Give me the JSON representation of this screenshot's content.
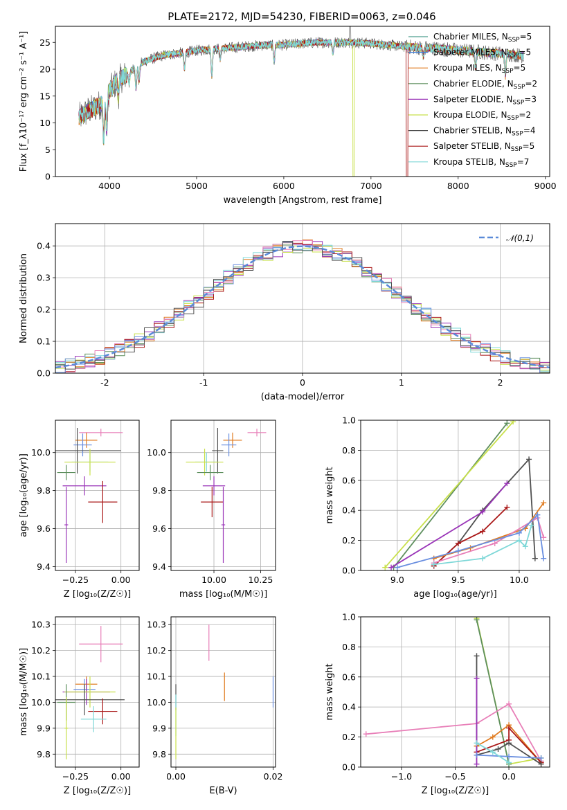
{
  "figure": {
    "title": "PLATE=2172, MJD=54230, FIBERID=0063, z=0.046"
  },
  "chart_data": [
    {
      "id": "spec",
      "type": "line",
      "xlabel": "wavelength [Angstrom, rest frame]",
      "ylabel": "Flux [f_λ10⁻¹⁷ erg cm⁻² s⁻¹ A⁻¹]",
      "xlim": [
        3380,
        9050
      ],
      "ylim": [
        0,
        28
      ],
      "xticks": [
        4000,
        5000,
        6000,
        7000,
        8000,
        9000
      ],
      "yticks": [
        0,
        5,
        10,
        15,
        20,
        25
      ],
      "grid": false,
      "legend_position": "right",
      "data_x_range": [
        3650,
        8750
      ],
      "continuum": {
        "x": [
          3650,
          3700,
          3750,
          3800,
          3850,
          3900,
          3950,
          4000,
          4100,
          4200,
          4300,
          4400,
          4500,
          4600,
          4700,
          4800,
          4900,
          5000,
          5200,
          5400,
          5600,
          5800,
          6000,
          6200,
          6400,
          6600,
          6800,
          7000,
          7200,
          7400,
          7600,
          7800,
          8000,
          8200,
          8400,
          8600,
          8750
        ],
        "y": [
          11,
          11.5,
          12.2,
          12.5,
          13,
          13.5,
          14,
          16,
          18,
          19,
          20.5,
          21.5,
          22,
          22.5,
          22.8,
          23,
          23.2,
          23.5,
          23.8,
          24,
          24.3,
          24.5,
          24.5,
          24.8,
          25,
          25,
          25,
          24.8,
          24.5,
          24.2,
          24,
          23.8,
          23.5,
          23.3,
          23,
          22.8,
          22.5
        ]
      },
      "series": [
        {
          "name": "Chabrier MILES, N_SSP=5",
          "color": "#4f9f8f"
        },
        {
          "name": "Salpeter MILES, N_SSP=5",
          "color": "#3f7fd8"
        },
        {
          "name": "Kroupa MILES, N_SSP=5",
          "color": "#e07b20"
        },
        {
          "name": "Chabrier ELODIE, N_SSP=2",
          "color": "#5e8f5e"
        },
        {
          "name": "Salpeter ELODIE, N_SSP=3",
          "color": "#9a35b8"
        },
        {
          "name": "Kroupa ELODIE, N_SSP=2",
          "color": "#c8e04a"
        },
        {
          "name": "Chabrier STELIB, N_SSP=4",
          "color": "#505050"
        },
        {
          "name": "Salpeter STELIB, N_SSP=5",
          "color": "#aa1818"
        },
        {
          "name": "Kroupa STELIB, N_SSP=7",
          "color": "#7fd8d8"
        }
      ]
    },
    {
      "id": "hist",
      "type": "line",
      "xlabel": "(data-model)/error",
      "ylabel": "Normed distribution",
      "xlim": [
        -2.5,
        2.5
      ],
      "ylim": [
        0,
        0.47
      ],
      "xticks": [
        -2,
        -1,
        0,
        1,
        2
      ],
      "yticks": [
        0.0,
        0.1,
        0.2,
        0.3,
        0.4
      ],
      "grid": true,
      "legend_position": "upper right",
      "legend": "𝒩(0,1)",
      "gauss_color": "#5a8ad8",
      "bin_edges": [
        -2.5,
        -2.4,
        -2.3,
        -2.2,
        -2.1,
        -2.0,
        -1.9,
        -1.8,
        -1.7,
        -1.6,
        -1.5,
        -1.4,
        -1.3,
        -1.2,
        -1.1,
        -1.0,
        -0.9,
        -0.8,
        -0.7,
        -0.6,
        -0.5,
        -0.4,
        -0.3,
        -0.2,
        -0.1,
        0.0,
        0.1,
        0.2,
        0.3,
        0.4,
        0.5,
        0.6,
        0.7,
        0.8,
        0.9,
        1.0,
        1.1,
        1.2,
        1.3,
        1.4,
        1.5,
        1.6,
        1.7,
        1.8,
        1.9,
        2.0,
        2.1,
        2.2,
        2.3,
        2.4,
        2.5
      ],
      "hist_colors": [
        "#5e8f5e",
        "#e07b20",
        "#9a35b8",
        "#c8e04a",
        "#aa1818",
        "#7fd8d8",
        "#e87fb8",
        "#6a8fe0",
        "#505050"
      ]
    },
    {
      "id": "za",
      "type": "scatter",
      "xlabel": "Z [log₁₀(Z/Z☉)]",
      "ylabel": "age  [log₁₀(age/yr)]",
      "xlim": [
        -0.36,
        0.1
      ],
      "ylim": [
        9.38,
        10.17
      ],
      "xticks": [
        -0.25,
        0.0
      ],
      "xticklabels": [
        "−0.25",
        "0.00"
      ],
      "yticks": [
        9.4,
        9.6,
        9.8,
        10.0
      ],
      "grid": true,
      "points": [
        {
          "x": -0.11,
          "y": 10.105,
          "ex": 0.12,
          "ey": 0.02,
          "c": "#e87fb8"
        },
        {
          "x": -0.19,
          "y": 10.065,
          "ex": 0.06,
          "ey": 0.04,
          "c": "#e07b20"
        },
        {
          "x": -0.21,
          "y": 10.04,
          "ex": 0.05,
          "ey": 0.06,
          "c": "#6a8fe0"
        },
        {
          "x": -0.24,
          "y": 10.01,
          "ex": 0.24,
          "ey": 0.12,
          "c": "#505050"
        },
        {
          "x": -0.17,
          "y": 9.95,
          "ex": 0.1,
          "ey": 0.05,
          "c": "#7fd8d8"
        },
        {
          "x": -0.17,
          "y": 9.95,
          "ex": 0.14,
          "ey": 0.07,
          "c": "#c8e04a"
        },
        {
          "x": -0.3,
          "y": 9.895,
          "ex": 0.05,
          "ey": 0.04,
          "c": "#5e8f5e"
        },
        {
          "x": -0.2,
          "y": 9.825,
          "ex": 0.12,
          "ey": 0.05,
          "c": "#9a35b8"
        },
        {
          "x": -0.1,
          "y": 9.74,
          "ex": 0.08,
          "ey": 0.11,
          "c": "#aa1818"
        },
        {
          "x": -0.3,
          "y": 9.62,
          "ex": 0.01,
          "ey": 0.2,
          "c": "#9a35b8"
        }
      ]
    },
    {
      "id": "ma",
      "type": "scatter",
      "xlabel": "mass [log₁₀(M/M☉)]",
      "ylabel": "",
      "xlim": [
        9.77,
        10.33
      ],
      "ylim": [
        9.38,
        10.17
      ],
      "xticks": [
        10.0,
        10.25
      ],
      "xticklabels": [
        "10.00",
        "10.25"
      ],
      "yticks": [
        9.4,
        9.6,
        9.8,
        10.0
      ],
      "grid": true,
      "points": [
        {
          "x": 10.23,
          "y": 10.105,
          "ex": 0.05,
          "ey": 0.02,
          "c": "#e87fb8"
        },
        {
          "x": 10.1,
          "y": 10.065,
          "ex": 0.05,
          "ey": 0.04,
          "c": "#e07b20"
        },
        {
          "x": 10.08,
          "y": 10.04,
          "ex": 0.04,
          "ey": 0.06,
          "c": "#6a8fe0"
        },
        {
          "x": 10.02,
          "y": 10.01,
          "ex": 0.03,
          "ey": 0.12,
          "c": "#505050"
        },
        {
          "x": 9.96,
          "y": 9.95,
          "ex": 0.06,
          "ey": 0.05,
          "c": "#7fd8d8"
        },
        {
          "x": 9.95,
          "y": 9.95,
          "ex": 0.1,
          "ey": 0.07,
          "c": "#c8e04a"
        },
        {
          "x": 9.98,
          "y": 9.895,
          "ex": 0.07,
          "ey": 0.04,
          "c": "#5e8f5e"
        },
        {
          "x": 10.0,
          "y": 9.825,
          "ex": 0.06,
          "ey": 0.05,
          "c": "#9a35b8"
        },
        {
          "x": 9.99,
          "y": 9.74,
          "ex": 0.06,
          "ey": 0.08,
          "c": "#aa1818"
        },
        {
          "x": 10.05,
          "y": 9.62,
          "ex": 0.01,
          "ey": 0.2,
          "c": "#9a35b8"
        }
      ]
    },
    {
      "id": "agew",
      "type": "line",
      "xlabel": "age  [log₁₀(age/yr)]",
      "ylabel": "mass weight",
      "xlim": [
        8.7,
        10.25
      ],
      "ylim": [
        0,
        1.0
      ],
      "xticks": [
        9.0,
        9.5,
        10.0
      ],
      "xticklabels": [
        "9.0",
        "9.5",
        "10.0"
      ],
      "yticks": [
        0.0,
        0.2,
        0.4,
        0.6,
        0.8,
        1.0
      ],
      "grid": true,
      "series": [
        {
          "c": "#5e8f5e",
          "x": [
            8.97,
            9.9
          ],
          "y": [
            0.02,
            0.98
          ]
        },
        {
          "c": "#c8e04a",
          "x": [
            8.9,
            9.95
          ],
          "y": [
            0.02,
            0.99
          ]
        },
        {
          "c": "#505050",
          "x": [
            9.3,
            9.5,
            9.7,
            10.08,
            10.13
          ],
          "y": [
            0.03,
            0.18,
            0.4,
            0.74,
            0.08
          ]
        },
        {
          "c": "#9a35b8",
          "x": [
            8.95,
            9.7,
            9.9
          ],
          "y": [
            0.02,
            0.39,
            0.58
          ]
        },
        {
          "c": "#aa1818",
          "x": [
            9.3,
            9.5,
            9.7,
            9.9
          ],
          "y": [
            0.03,
            0.18,
            0.26,
            0.42
          ]
        },
        {
          "c": "#e07b20",
          "x": [
            9.3,
            9.6,
            10.05,
            10.2
          ],
          "y": [
            0.08,
            0.15,
            0.28,
            0.45
          ]
        },
        {
          "c": "#e87fb8",
          "x": [
            9.3,
            9.8,
            10.15,
            10.2
          ],
          "y": [
            0.05,
            0.18,
            0.35,
            0.22
          ]
        },
        {
          "c": "#6a8fe0",
          "x": [
            9.0,
            9.5,
            10.0,
            10.15,
            10.2
          ],
          "y": [
            0.02,
            0.13,
            0.25,
            0.37,
            0.08
          ]
        },
        {
          "c": "#7fd8d8",
          "x": [
            9.3,
            9.7,
            10.0,
            10.05,
            10.1
          ],
          "y": [
            0.04,
            0.08,
            0.2,
            0.16,
            0.3
          ]
        }
      ]
    },
    {
      "id": "zm",
      "type": "scatter",
      "xlabel": "Z [log₁₀(Z/Z☉)]",
      "ylabel": "mass [log₁₀(M/M☉)]",
      "xlim": [
        -0.36,
        0.1
      ],
      "ylim": [
        9.75,
        10.33
      ],
      "xticks": [
        -0.25,
        0.0
      ],
      "xticklabels": [
        "−0.25",
        "0.00"
      ],
      "yticks": [
        9.8,
        9.9,
        10.0,
        10.1,
        10.2,
        10.3
      ],
      "grid": true,
      "points": [
        {
          "x": -0.11,
          "y": 10.225,
          "ex": 0.12,
          "ey": 0.07,
          "c": "#e87fb8"
        },
        {
          "x": -0.19,
          "y": 10.07,
          "ex": 0.06,
          "ey": 0.03,
          "c": "#e07b20"
        },
        {
          "x": -0.2,
          "y": 10.05,
          "ex": 0.06,
          "ey": 0.04,
          "c": "#6a8fe0"
        },
        {
          "x": -0.19,
          "y": 10.04,
          "ex": 0.13,
          "ey": 0.05,
          "c": "#9a35b8"
        },
        {
          "x": -0.17,
          "y": 10.04,
          "ex": 0.14,
          "ey": 0.06,
          "c": "#c8e04a"
        },
        {
          "x": -0.2,
          "y": 10.01,
          "ex": 0.22,
          "ey": 0.06,
          "c": "#505050"
        },
        {
          "x": -0.3,
          "y": 10.0,
          "ex": 0.05,
          "ey": 0.07,
          "c": "#5e8f5e"
        },
        {
          "x": -0.1,
          "y": 9.965,
          "ex": 0.08,
          "ey": 0.05,
          "c": "#aa1818"
        },
        {
          "x": -0.15,
          "y": 9.935,
          "ex": 0.07,
          "ey": 0.05,
          "c": "#7fd8d8"
        },
        {
          "x": -0.3,
          "y": 9.9,
          "ex": 0.01,
          "ey": 0.12,
          "c": "#c8e04a"
        }
      ]
    },
    {
      "id": "em",
      "type": "scatter",
      "xlabel": "E(B-V)",
      "ylabel": "",
      "xlim": [
        -0.001,
        0.0205
      ],
      "ylim": [
        9.75,
        10.33
      ],
      "xticks": [
        0.0,
        0.02
      ],
      "xticklabels": [
        "0.00",
        "0.02"
      ],
      "yticks": [
        9.8,
        9.9,
        10.0,
        10.1,
        10.2,
        10.3
      ],
      "grid": true,
      "points": [
        {
          "x": 0.0068,
          "y": 10.23,
          "ex": 0,
          "ey": 0.07,
          "c": "#e87fb8"
        },
        {
          "x": 0.01,
          "y": 10.06,
          "ex": 0,
          "ey": 0.055,
          "c": "#e07b20"
        },
        {
          "x": 0.02,
          "y": 10.04,
          "ex": 0,
          "ey": 0.06,
          "c": "#6a8fe0"
        },
        {
          "x": 0.0,
          "y": 10.02,
          "ex": 0,
          "ey": 0.05,
          "c": "#505050"
        },
        {
          "x": 0.0,
          "y": 9.95,
          "ex": 0,
          "ey": 0.08,
          "c": "#7fd8d8"
        },
        {
          "x": 0.0,
          "y": 9.88,
          "ex": 0,
          "ey": 0.1,
          "c": "#c8e04a"
        }
      ]
    },
    {
      "id": "zw",
      "type": "line",
      "xlabel": "Z [log₁₀(Z/Z☉)]",
      "ylabel": "mass weight",
      "xlim": [
        -1.38,
        0.38
      ],
      "ylim": [
        0,
        1.0
      ],
      "xticks": [
        -1.0,
        -0.5,
        0.0
      ],
      "xticklabels": [
        "−1.0",
        "−0.5",
        "0.0"
      ],
      "yticks": [
        0.0,
        0.2,
        0.4,
        0.6,
        0.8,
        1.0
      ],
      "grid": true,
      "series": [
        {
          "c": "#c8e04a",
          "x": [
            -0.3,
            0.0,
            0.3
          ],
          "y": [
            0.99,
            0.02,
            0.06
          ]
        },
        {
          "c": "#5e8f5e",
          "x": [
            -0.3,
            0.0
          ],
          "y": [
            0.98,
            0.02
          ]
        },
        {
          "c": "#e87fb8",
          "x": [
            -1.33,
            -0.3,
            0.0,
            0.3
          ],
          "y": [
            0.22,
            0.29,
            0.42,
            0.04
          ]
        },
        {
          "c": "#e07b20",
          "x": [
            -0.3,
            -0.15,
            0.0,
            0.3
          ],
          "y": [
            0.14,
            0.2,
            0.28,
            0.03
          ]
        },
        {
          "c": "#aa1818",
          "x": [
            -0.3,
            0.0,
            0.0,
            0.3
          ],
          "y": [
            0.1,
            0.18,
            0.26,
            0.03
          ]
        },
        {
          "c": "#505050",
          "x": [
            -0.3,
            -0.3,
            -0.1,
            0.0,
            0.3
          ],
          "y": [
            0.74,
            0.08,
            0.12,
            0.16,
            0.02
          ]
        },
        {
          "c": "#9a35b8",
          "x": [
            -0.3,
            -0.3
          ],
          "y": [
            0.59,
            0.02
          ]
        },
        {
          "c": "#6a8fe0",
          "x": [
            -0.3,
            0.0,
            0.3
          ],
          "y": [
            0.08,
            0.07,
            0.06
          ]
        },
        {
          "c": "#7fd8d8",
          "x": [
            -0.3,
            -0.15,
            0.0
          ],
          "y": [
            0.16,
            0.1,
            0.03
          ]
        }
      ]
    }
  ]
}
